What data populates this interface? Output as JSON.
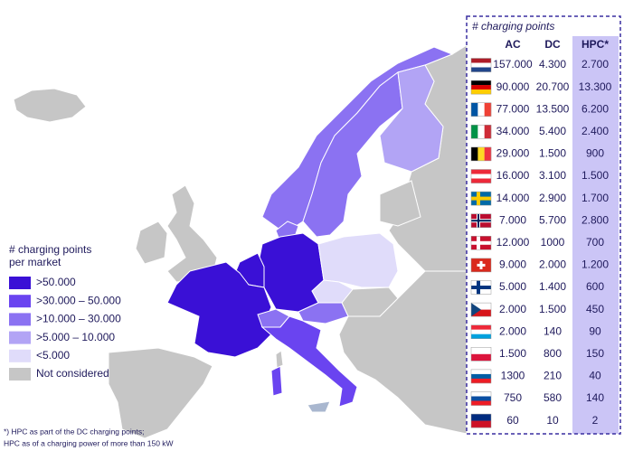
{
  "legend": {
    "title": [
      "# charging points",
      "per market"
    ],
    "items": [
      {
        "label": ">50.000",
        "color": "#3a10d6"
      },
      {
        "label": ">30.000 – 50.000",
        "color": "#6a44f0"
      },
      {
        "label": ">10.000 – 30.000",
        "color": "#8b72f2"
      },
      {
        "label": ">5.000 – 10.000",
        "color": "#b2a4f5"
      },
      {
        "label": "<5.000",
        "color": "#e0dcfa"
      },
      {
        "label": "Not considered",
        "color": "#c6c6c6"
      }
    ]
  },
  "table": {
    "title": "# charging points",
    "header": [
      "AC",
      "DC",
      "HPC*"
    ],
    "rows": [
      [
        "157.000",
        "4.300",
        "2.700"
      ],
      [
        "90.000",
        "20.700",
        "13.300"
      ],
      [
        "77.000",
        "13.500",
        "6.200"
      ],
      [
        "34.000",
        "5.400",
        "2.400"
      ],
      [
        "29.000",
        "1.500",
        "900"
      ],
      [
        "16.000",
        "3.100",
        "1.500"
      ],
      [
        "14.000",
        "2.900",
        "1.700"
      ],
      [
        "7.000",
        "5.700",
        "2.800"
      ],
      [
        "12.000",
        "1000",
        "700"
      ],
      [
        "9.000",
        "2.000",
        "1.200"
      ],
      [
        "5.000",
        "1.400",
        "600"
      ],
      [
        "2.000",
        "1.500",
        "450"
      ],
      [
        "2.000",
        "140",
        "90"
      ],
      [
        "1.500",
        "800",
        "150"
      ],
      [
        "1300",
        "210",
        "40"
      ],
      [
        "750",
        "580",
        "140"
      ],
      [
        "60",
        "10",
        "2"
      ]
    ]
  },
  "footnote": [
    "*) HPC as part of the DC charging points;",
    "HPC as of a charging power of more than 150 kW"
  ]
}
